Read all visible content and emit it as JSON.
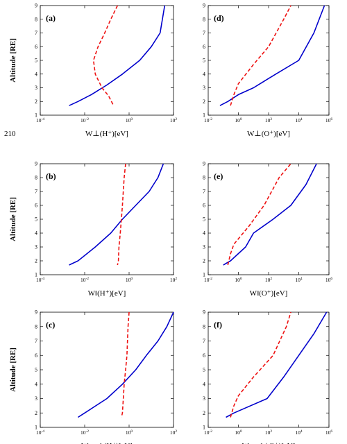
{
  "margin_line_number": "210",
  "chart_data": [
    {
      "type": "line",
      "panel_label": "(a)",
      "xscale": "log",
      "xlim": [
        0.0001,
        100
      ],
      "xticks": [
        "10^-4",
        "10^-2",
        "10^0",
        "10^2"
      ],
      "xlabel": "W⊥(H⁺)[eV]",
      "ylabel": "Altitude [RE]",
      "ylim": [
        1,
        9
      ],
      "yticks": [
        "1",
        "2",
        "3",
        "4",
        "5",
        "6",
        "7",
        "8",
        "9"
      ],
      "series": [
        {
          "style": "solid",
          "color": "#0000cc",
          "x": [
            0.002,
            0.005,
            0.02,
            0.1,
            0.5,
            3,
            10,
            25,
            40
          ],
          "y": [
            1.7,
            2,
            2.5,
            3.2,
            4,
            5,
            6,
            7,
            9
          ]
        },
        {
          "style": "dashed",
          "color": "#ee1111",
          "x": [
            0.3,
            0.15,
            0.08,
            0.04,
            0.025,
            0.03,
            0.06,
            0.12,
            0.2
          ],
          "y": [
            9,
            8,
            7,
            6,
            5,
            4,
            3,
            2.4,
            1.7
          ]
        }
      ]
    },
    {
      "type": "line",
      "panel_label": "(d)",
      "xscale": "log",
      "xlim": [
        0.01,
        1000000
      ],
      "xticks": [
        "10^-2",
        "10^0",
        "10^2",
        "10^4",
        "10^6"
      ],
      "xlabel": "W⊥(O⁺)[eV]",
      "ylabel": "",
      "ylim": [
        1,
        9
      ],
      "yticks": [
        "1",
        "2",
        "3",
        "4",
        "5",
        "6",
        "7",
        "8",
        "9"
      ],
      "series": [
        {
          "style": "solid",
          "color": "#0000cc",
          "x": [
            0.06,
            0.2,
            1,
            10,
            300,
            10000,
            100000,
            500000
          ],
          "y": [
            1.7,
            2,
            2.5,
            3,
            4,
            5,
            7,
            9
          ]
        },
        {
          "style": "dashed",
          "color": "#ee1111",
          "x": [
            0.3,
            0.5,
            1,
            10,
            100,
            1000,
            3000
          ],
          "y": [
            1.7,
            2.5,
            3.3,
            4.7,
            6,
            8,
            9
          ]
        }
      ]
    },
    {
      "type": "line",
      "panel_label": "(b)",
      "xscale": "log",
      "xlim": [
        0.0001,
        100
      ],
      "xticks": [
        "10^-4",
        "10^-2",
        "10^0",
        "10^2"
      ],
      "xlabel": "W‖(H⁺)[eV]",
      "ylabel": "Altitude [RE]",
      "ylim": [
        1,
        9
      ],
      "yticks": [
        "1",
        "2",
        "3",
        "4",
        "5",
        "6",
        "7",
        "8",
        "9"
      ],
      "series": [
        {
          "style": "solid",
          "color": "#0000cc",
          "x": [
            0.002,
            0.005,
            0.03,
            0.15,
            0.5,
            2,
            8,
            20,
            35
          ],
          "y": [
            1.7,
            2,
            3,
            4,
            5,
            6,
            7,
            8,
            9
          ]
        },
        {
          "style": "dashed",
          "color": "#ee1111",
          "x": [
            0.7,
            0.6,
            0.5,
            0.45,
            0.4,
            0.35,
            0.33,
            0.3
          ],
          "y": [
            9,
            8,
            6,
            5,
            4,
            3,
            2,
            1.7
          ]
        }
      ]
    },
    {
      "type": "line",
      "panel_label": "(e)",
      "xscale": "log",
      "xlim": [
        0.01,
        1000000
      ],
      "xticks": [
        "10^-2",
        "10^0",
        "10^2",
        "10^4",
        "10^6"
      ],
      "xlabel": "W‖(O⁺)[eV]",
      "ylabel": "",
      "ylim": [
        1,
        9
      ],
      "yticks": [
        "1",
        "2",
        "3",
        "4",
        "5",
        "6",
        "7",
        "8",
        "9"
      ],
      "series": [
        {
          "style": "solid",
          "color": "#0000cc",
          "x": [
            0.1,
            0.3,
            3,
            10,
            200,
            3000,
            30000,
            150000
          ],
          "y": [
            1.7,
            2,
            3,
            4,
            5,
            6,
            7.5,
            9
          ]
        },
        {
          "style": "dashed",
          "color": "#ee1111",
          "x": [
            0.2,
            0.3,
            0.5,
            5,
            50,
            500,
            3000
          ],
          "y": [
            1.7,
            2.5,
            3.2,
            4.5,
            6,
            8,
            9
          ]
        }
      ]
    },
    {
      "type": "line",
      "panel_label": "(c)",
      "xscale": "log",
      "xlim": [
        0.0001,
        100
      ],
      "xticks": [
        "10^-4",
        "10^-2",
        "10^0",
        "10^2"
      ],
      "xlabel": "Wtotal (H⁺)[eV]",
      "ylabel": "Altitude [RE]",
      "ylim": [
        1,
        9
      ],
      "yticks": [
        "1",
        "2",
        "3",
        "4",
        "5",
        "6",
        "7",
        "8",
        "9"
      ],
      "series": [
        {
          "style": "solid",
          "color": "#0000cc",
          "x": [
            0.005,
            0.01,
            0.1,
            0.5,
            2,
            6,
            20,
            50,
            100
          ],
          "y": [
            1.7,
            2,
            3,
            4,
            5,
            6,
            7,
            8,
            9
          ]
        },
        {
          "style": "dashed",
          "color": "#ee1111",
          "x": [
            1,
            0.9,
            0.8,
            0.7,
            0.6,
            0.55,
            0.5,
            0.45
          ],
          "y": [
            9,
            8,
            6,
            5,
            4,
            3,
            2,
            1.7
          ]
        }
      ]
    },
    {
      "type": "line",
      "panel_label": "(f)",
      "xscale": "log",
      "xlim": [
        0.01,
        1000000
      ],
      "xticks": [
        "10^-2",
        "10^0",
        "10^2",
        "10^4",
        "10^6"
      ],
      "xlabel": "Wtotal ( O⁺)[eV]",
      "ylabel": "",
      "ylim": [
        1,
        9
      ],
      "yticks": [
        "1",
        "2",
        "3",
        "4",
        "5",
        "6",
        "7",
        "8",
        "9"
      ],
      "series": [
        {
          "style": "solid",
          "color": "#0000cc",
          "x": [
            0.15,
            0.5,
            80,
            1000,
            10000,
            100000,
            700000
          ],
          "y": [
            1.7,
            2,
            3,
            4.5,
            6,
            7.5,
            9
          ]
        },
        {
          "style": "dashed",
          "color": "#ee1111",
          "x": [
            0.3,
            0.5,
            1,
            10,
            200,
            1500,
            3000
          ],
          "y": [
            1.7,
            2.5,
            3.2,
            4.5,
            6,
            8,
            9
          ]
        }
      ]
    }
  ]
}
